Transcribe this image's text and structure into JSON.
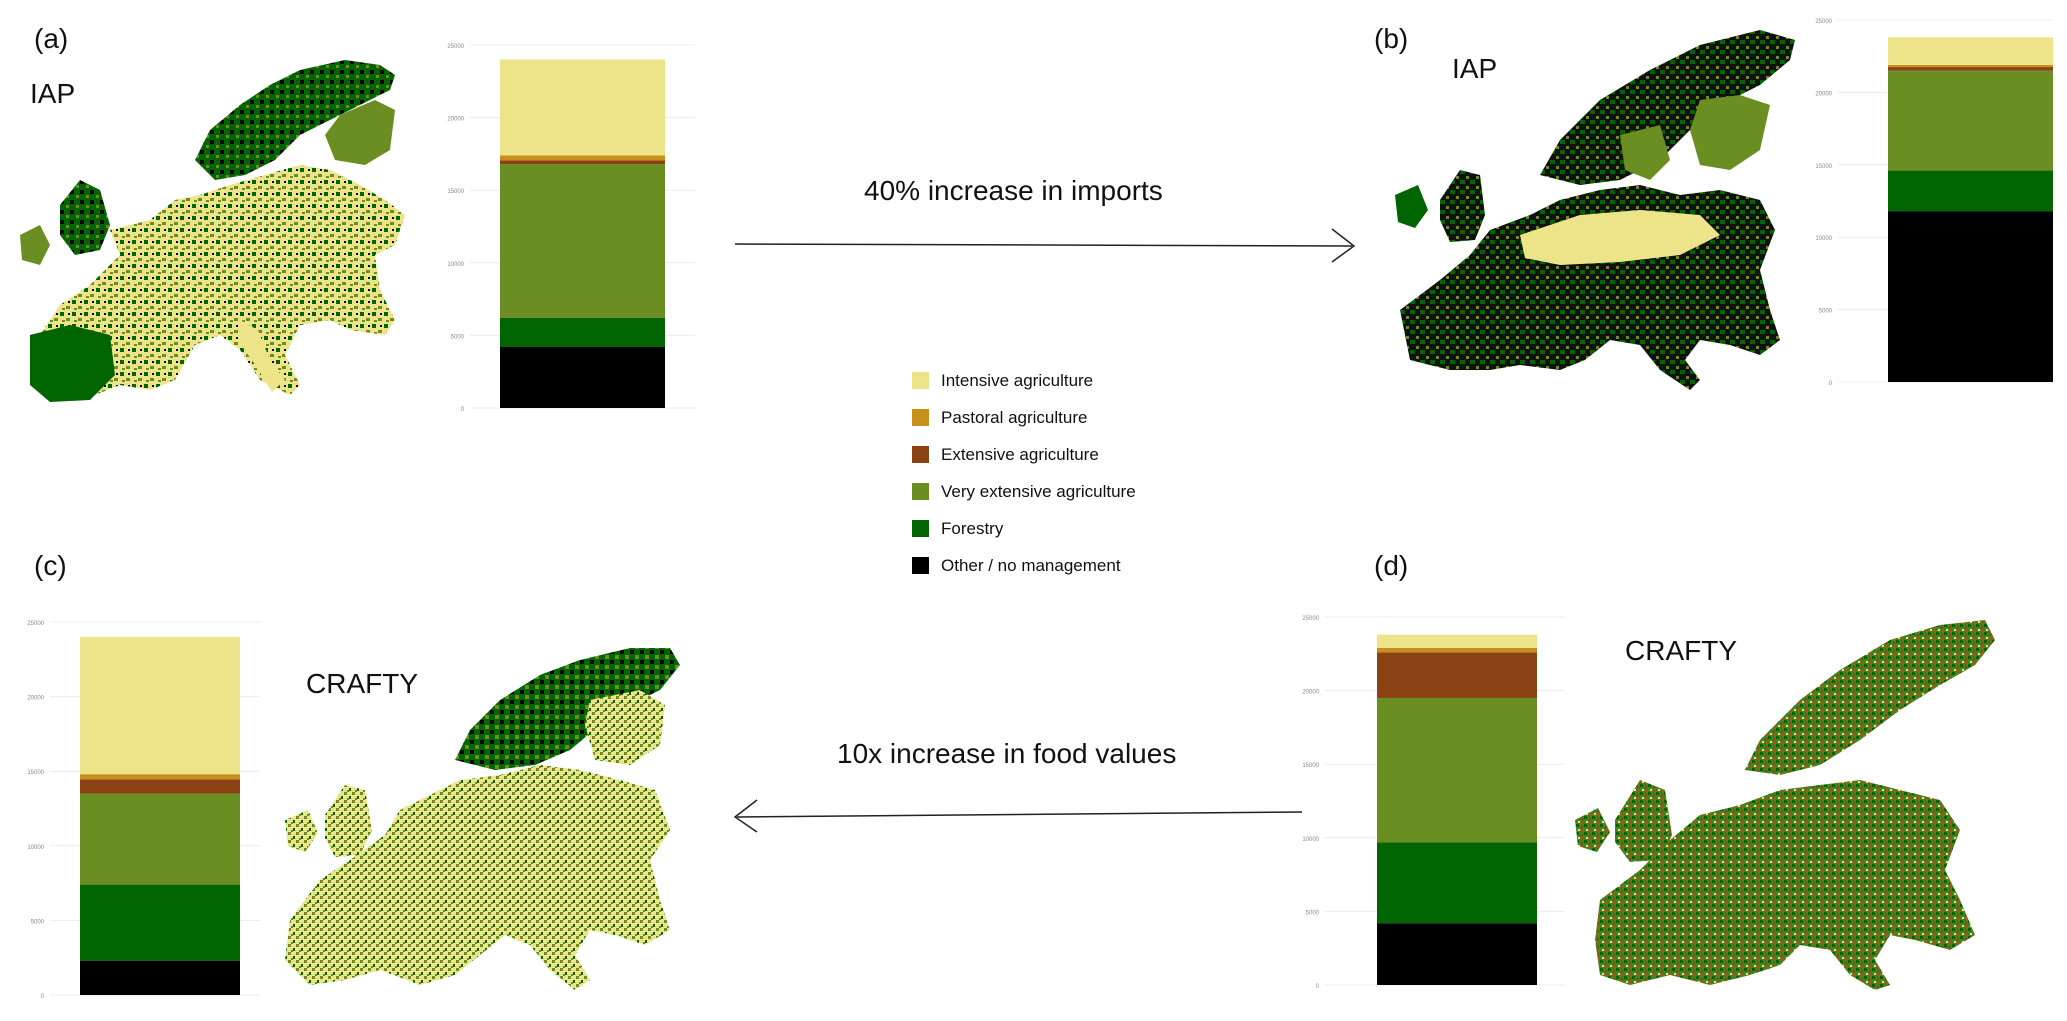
{
  "colors": {
    "intensive": "#ede48a",
    "pastoral": "#c6901c",
    "extensive": "#8a4114",
    "very_extensive": "#6b8e23",
    "forestry": "#006400",
    "other": "#000000"
  },
  "panels": [
    {
      "id": "a",
      "label": "(a)",
      "model": "IAP"
    },
    {
      "id": "b",
      "label": "(b)",
      "model": "IAP"
    },
    {
      "id": "c",
      "label": "(c)",
      "model": "CRAFTY"
    },
    {
      "id": "d",
      "label": "(d)",
      "model": "CRAFTY"
    }
  ],
  "arrows": {
    "top": "40% increase in imports",
    "bottom": "10x increase in food values"
  },
  "legend": [
    {
      "key": "intensive",
      "label": "Intensive agriculture"
    },
    {
      "key": "pastoral",
      "label": "Pastoral agriculture"
    },
    {
      "key": "extensive",
      "label": "Extensive agriculture"
    },
    {
      "key": "very_extensive",
      "label": "Very extensive agriculture"
    },
    {
      "key": "forestry",
      "label": "Forestry"
    },
    {
      "key": "other",
      "label": "Other / no management"
    }
  ],
  "chart_data": [
    {
      "type": "bar",
      "panel": "a",
      "stacked": true,
      "ylim": [
        0,
        25000
      ],
      "yticks": [
        "0",
        "5000",
        "10000",
        "15000",
        "20000",
        "25000"
      ],
      "series": [
        {
          "key": "other",
          "name": "Other / no management",
          "value": 4200
        },
        {
          "key": "forestry",
          "name": "Forestry",
          "value": 2000
        },
        {
          "key": "very_extensive",
          "name": "Very extensive agriculture",
          "value": 10600
        },
        {
          "key": "extensive",
          "name": "Extensive agriculture",
          "value": 250
        },
        {
          "key": "pastoral",
          "name": "Pastoral agriculture",
          "value": 350
        },
        {
          "key": "intensive",
          "name": "Intensive agriculture",
          "value": 6600
        }
      ]
    },
    {
      "type": "bar",
      "panel": "b",
      "stacked": true,
      "ylim": [
        0,
        25000
      ],
      "yticks": [
        "0",
        "5000",
        "10000",
        "15000",
        "20000",
        "25000"
      ],
      "series": [
        {
          "key": "other",
          "name": "Other / no management",
          "value": 11800
        },
        {
          "key": "forestry",
          "name": "Forestry",
          "value": 2800
        },
        {
          "key": "very_extensive",
          "name": "Very extensive agriculture",
          "value": 6900
        },
        {
          "key": "extensive",
          "name": "Extensive agriculture",
          "value": 250
        },
        {
          "key": "pastoral",
          "name": "Pastoral agriculture",
          "value": 150
        },
        {
          "key": "intensive",
          "name": "Intensive agriculture",
          "value": 1900
        }
      ]
    },
    {
      "type": "bar",
      "panel": "c",
      "stacked": true,
      "ylim": [
        0,
        25000
      ],
      "yticks": [
        "0",
        "5000",
        "10000",
        "15000",
        "20000",
        "25000"
      ],
      "series": [
        {
          "key": "other",
          "name": "Other / no management",
          "value": 2300
        },
        {
          "key": "forestry",
          "name": "Forestry",
          "value": 5100
        },
        {
          "key": "very_extensive",
          "name": "Very extensive agriculture",
          "value": 6100
        },
        {
          "key": "extensive",
          "name": "Extensive agriculture",
          "value": 950
        },
        {
          "key": "pastoral",
          "name": "Pastoral agriculture",
          "value": 350
        },
        {
          "key": "intensive",
          "name": "Intensive agriculture",
          "value": 9200
        }
      ]
    },
    {
      "type": "bar",
      "panel": "d",
      "stacked": true,
      "ylim": [
        0,
        25000
      ],
      "yticks": [
        "0",
        "5000",
        "10000",
        "15000",
        "20000",
        "25000"
      ],
      "series": [
        {
          "key": "other",
          "name": "Other / no management",
          "value": 4200
        },
        {
          "key": "forestry",
          "name": "Forestry",
          "value": 5500
        },
        {
          "key": "very_extensive",
          "name": "Very extensive agriculture",
          "value": 9800
        },
        {
          "key": "extensive",
          "name": "Extensive agriculture",
          "value": 3100
        },
        {
          "key": "pastoral",
          "name": "Pastoral agriculture",
          "value": 300
        },
        {
          "key": "intensive",
          "name": "Intensive agriculture",
          "value": 900
        }
      ]
    }
  ]
}
